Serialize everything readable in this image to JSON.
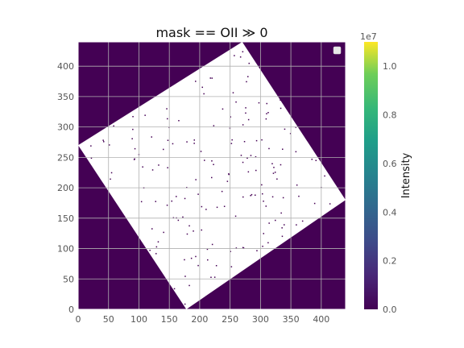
{
  "chart_data": {
    "type": "heatmap",
    "title": "mask == OII  ≫  0",
    "xlabel": "",
    "ylabel": "",
    "xlim": [
      0,
      440
    ],
    "ylim": [
      0,
      440
    ],
    "x_ticks": [
      0,
      50,
      100,
      150,
      200,
      250,
      300,
      350,
      400
    ],
    "y_ticks": [
      0,
      50,
      100,
      150,
      200,
      250,
      300,
      350,
      400
    ],
    "grid": true,
    "legend": {
      "placement": "top-right",
      "entries": [
        ""
      ]
    },
    "background_value": 0,
    "masked_region": {
      "shape": "rotated-rectangle",
      "fill": "white",
      "corners": [
        [
          270,
          440
        ],
        [
          440,
          180
        ],
        [
          178,
          0
        ],
        [
          0,
          270
        ]
      ]
    },
    "colorbar": {
      "label": "Intensity",
      "scale_label": "1e7",
      "range": [
        0.0,
        1.1
      ],
      "ticks": [
        "0.0",
        "0.2",
        "0.4",
        "0.6",
        "0.8",
        "1.0"
      ],
      "colormap": "viridis"
    },
    "colors": {
      "background": "#440154",
      "mask": "#ffffff",
      "grid": "#b0b0b0"
    }
  }
}
